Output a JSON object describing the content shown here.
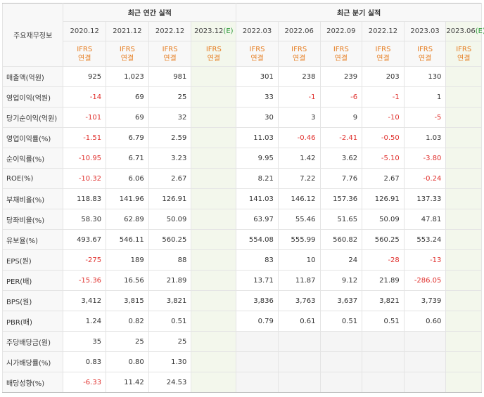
{
  "header": {
    "corner_label": "주요재무정보",
    "annual_group": "최근 연간 실적",
    "quarter_group": "최근 분기 실적",
    "annual_periods": [
      "2020.12",
      "2021.12",
      "2022.12",
      "2023.12"
    ],
    "annual_estimate_marker": "(E)",
    "quarter_periods": [
      "2022.03",
      "2022.06",
      "2022.09",
      "2022.12",
      "2023.03",
      "2023.06"
    ],
    "quarter_estimate_marker": "(E)",
    "standard_line1": "IFRS",
    "standard_line2": "연결"
  },
  "rows": [
    {
      "label": "매출액(억원)",
      "values": [
        "925",
        "1,023",
        "981",
        "",
        "301",
        "238",
        "239",
        "203",
        "130",
        ""
      ]
    },
    {
      "label": "영업이익(억원)",
      "values": [
        "-14",
        "69",
        "25",
        "",
        "33",
        "-1",
        "-6",
        "-1",
        "1",
        ""
      ]
    },
    {
      "label": "당기순이익(억원)",
      "values": [
        "-101",
        "69",
        "32",
        "",
        "30",
        "3",
        "9",
        "-10",
        "-5",
        ""
      ]
    },
    {
      "label": "영업이익률(%)",
      "values": [
        "-1.51",
        "6.79",
        "2.59",
        "",
        "11.03",
        "-0.46",
        "-2.41",
        "-0.50",
        "1.03",
        ""
      ]
    },
    {
      "label": "순이익률(%)",
      "values": [
        "-10.95",
        "6.71",
        "3.23",
        "",
        "9.95",
        "1.42",
        "3.62",
        "-5.10",
        "-3.80",
        ""
      ]
    },
    {
      "label": "ROE(%)",
      "values": [
        "-10.32",
        "6.06",
        "2.67",
        "",
        "8.21",
        "7.22",
        "7.76",
        "2.67",
        "-0.24",
        ""
      ]
    },
    {
      "label": "부채비율(%)",
      "values": [
        "118.83",
        "141.96",
        "126.91",
        "",
        "141.03",
        "146.12",
        "157.36",
        "126.91",
        "137.33",
        ""
      ]
    },
    {
      "label": "당좌비율(%)",
      "values": [
        "58.30",
        "62.89",
        "50.09",
        "",
        "63.97",
        "55.46",
        "51.65",
        "50.09",
        "47.81",
        ""
      ]
    },
    {
      "label": "유보율(%)",
      "values": [
        "493.67",
        "546.11",
        "560.25",
        "",
        "554.08",
        "555.99",
        "560.82",
        "560.25",
        "553.24",
        ""
      ]
    },
    {
      "label": "EPS(원)",
      "values": [
        "-275",
        "189",
        "88",
        "",
        "83",
        "10",
        "24",
        "-28",
        "-13",
        ""
      ]
    },
    {
      "label": "PER(배)",
      "values": [
        "-15.36",
        "16.56",
        "21.89",
        "",
        "13.71",
        "11.87",
        "9.12",
        "21.89",
        "-286.05",
        ""
      ]
    },
    {
      "label": "BPS(원)",
      "values": [
        "3,412",
        "3,815",
        "3,821",
        "",
        "3,836",
        "3,763",
        "3,637",
        "3,821",
        "3,739",
        ""
      ]
    },
    {
      "label": "PBR(배)",
      "values": [
        "1.24",
        "0.82",
        "0.51",
        "",
        "0.79",
        "0.61",
        "0.51",
        "0.51",
        "0.60",
        ""
      ]
    },
    {
      "label": "주당배당금(원)",
      "values": [
        "35",
        "25",
        "25",
        "",
        "",
        "",
        "",
        "",
        "",
        ""
      ]
    },
    {
      "label": "시가배당률(%)",
      "values": [
        "0.83",
        "0.80",
        "1.30",
        "",
        "",
        "",
        "",
        "",
        "",
        ""
      ]
    },
    {
      "label": "배당성향(%)",
      "values": [
        "-6.33",
        "11.42",
        "24.53",
        "",
        "",
        "",
        "",
        "",
        "",
        ""
      ]
    }
  ],
  "colors": {
    "negative": "#e0302d",
    "ifrs_label": "#e67e22",
    "estimate_marker": "#2e9a3a",
    "estimate_column_bg": "#f3f7ec"
  }
}
